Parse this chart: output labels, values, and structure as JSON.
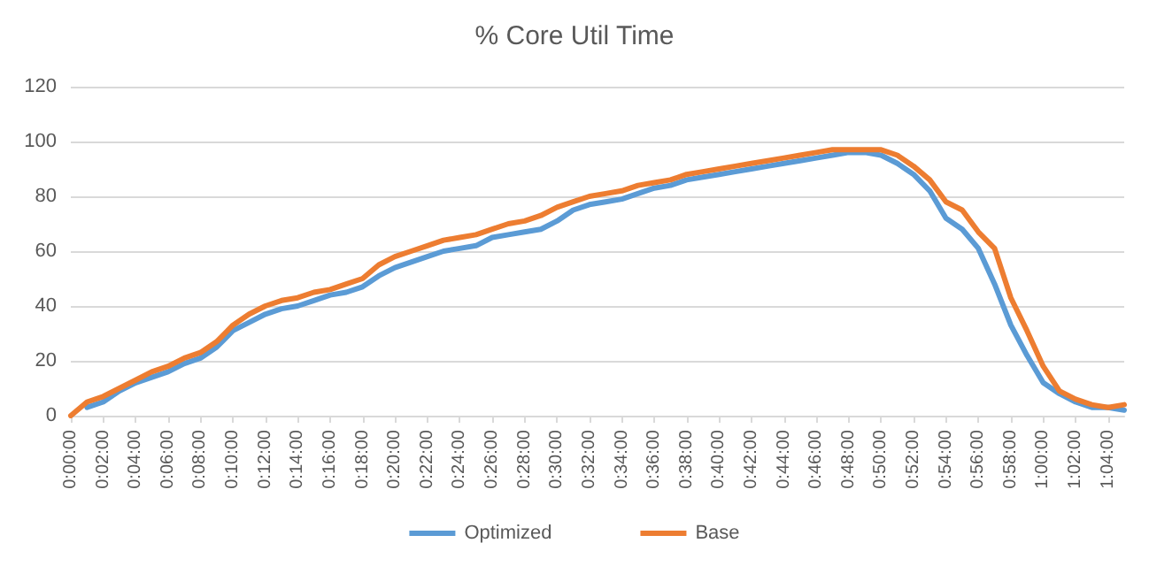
{
  "chart_data": {
    "type": "line",
    "title": "% Core Util Time",
    "x": [
      0,
      0.0167,
      0.0333,
      0.05,
      0.0667,
      0.0833,
      0.1,
      0.1167,
      0.1333,
      0.15,
      0.1667,
      0.1833,
      0.2,
      0.2167,
      0.2333,
      0.25,
      0.2667,
      0.2833,
      0.3,
      0.3167,
      0.3333,
      0.35,
      0.3667,
      0.3833,
      0.4,
      0.4167,
      0.4333,
      0.45,
      0.4667,
      0.4833,
      0.5,
      0.5167,
      0.5333,
      0.55,
      0.5667,
      0.5833,
      0.6,
      0.6167,
      0.6333,
      0.65,
      0.6667,
      0.6833,
      0.7,
      0.7167,
      0.7333,
      0.75,
      0.7667,
      0.7833,
      0.8,
      0.8167,
      0.8333,
      0.85,
      0.8667,
      0.8833,
      0.9,
      0.9167,
      0.9333,
      0.95,
      0.9667,
      0.9833,
      1,
      1.0167,
      1.0333,
      1.05,
      1.0667,
      1.0833
    ],
    "series": [
      {
        "name": "Optimized",
        "color": "#5b9bd5",
        "values": [
          null,
          3,
          5,
          9,
          12,
          14,
          16,
          19,
          21,
          25,
          31,
          34,
          37,
          39,
          40,
          42,
          44,
          45,
          47,
          51,
          54,
          56,
          58,
          60,
          61,
          62,
          65,
          66,
          67,
          68,
          71,
          75,
          77,
          78,
          79,
          81,
          83,
          84,
          86,
          87,
          88,
          89,
          90,
          91,
          92,
          93,
          94,
          95,
          96,
          96,
          95,
          92,
          88,
          82,
          72,
          68,
          61,
          48,
          33,
          22,
          12,
          8,
          5,
          3,
          3,
          2
        ]
      },
      {
        "name": "Base",
        "color": "#ed7d31",
        "values": [
          0,
          5,
          7,
          10,
          13,
          16,
          18,
          21,
          23,
          27,
          33,
          37,
          40,
          42,
          43,
          45,
          46,
          48,
          50,
          55,
          58,
          60,
          62,
          64,
          65,
          66,
          68,
          70,
          71,
          73,
          76,
          78,
          80,
          81,
          82,
          84,
          85,
          86,
          88,
          89,
          90,
          91,
          92,
          93,
          94,
          95,
          96,
          97,
          97,
          97,
          97,
          95,
          91,
          86,
          78,
          75,
          67,
          61,
          43,
          31,
          18,
          9,
          6,
          4,
          3,
          4
        ]
      }
    ],
    "xlim": [
      0,
      1.0833
    ],
    "xticks": [
      {
        "value": 0,
        "label": "0:00:00"
      },
      {
        "value": 0.0333,
        "label": "0:02:00"
      },
      {
        "value": 0.0667,
        "label": "0:04:00"
      },
      {
        "value": 0.1,
        "label": "0:06:00"
      },
      {
        "value": 0.1333,
        "label": "0:08:00"
      },
      {
        "value": 0.1667,
        "label": "0:10:00"
      },
      {
        "value": 0.2,
        "label": "0:12:00"
      },
      {
        "value": 0.2333,
        "label": "0:14:00"
      },
      {
        "value": 0.2667,
        "label": "0:16:00"
      },
      {
        "value": 0.3,
        "label": "0:18:00"
      },
      {
        "value": 0.3333,
        "label": "0:20:00"
      },
      {
        "value": 0.3667,
        "label": "0:22:00"
      },
      {
        "value": 0.4,
        "label": "0:24:00"
      },
      {
        "value": 0.4333,
        "label": "0:26:00"
      },
      {
        "value": 0.4667,
        "label": "0:28:00"
      },
      {
        "value": 0.5,
        "label": "0:30:00"
      },
      {
        "value": 0.5333,
        "label": "0:32:00"
      },
      {
        "value": 0.5667,
        "label": "0:34:00"
      },
      {
        "value": 0.6,
        "label": "0:36:00"
      },
      {
        "value": 0.6333,
        "label": "0:38:00"
      },
      {
        "value": 0.6667,
        "label": "0:40:00"
      },
      {
        "value": 0.7,
        "label": "0:42:00"
      },
      {
        "value": 0.7333,
        "label": "0:44:00"
      },
      {
        "value": 0.7667,
        "label": "0:46:00"
      },
      {
        "value": 0.8,
        "label": "0:48:00"
      },
      {
        "value": 0.8333,
        "label": "0:50:00"
      },
      {
        "value": 0.8667,
        "label": "0:52:00"
      },
      {
        "value": 0.9,
        "label": "0:54:00"
      },
      {
        "value": 0.9333,
        "label": "0:56:00"
      },
      {
        "value": 0.9667,
        "label": "0:58:00"
      },
      {
        "value": 1,
        "label": "1:00:00"
      },
      {
        "value": 1.0333,
        "label": "1:02:00"
      },
      {
        "value": 1.0667,
        "label": "1:04:00"
      }
    ],
    "ylim": [
      0,
      120
    ],
    "yticks": [
      0,
      20,
      40,
      60,
      80,
      100,
      120
    ],
    "grid": "y",
    "legend": "bottom",
    "marker": "none",
    "line_style": "solid"
  }
}
